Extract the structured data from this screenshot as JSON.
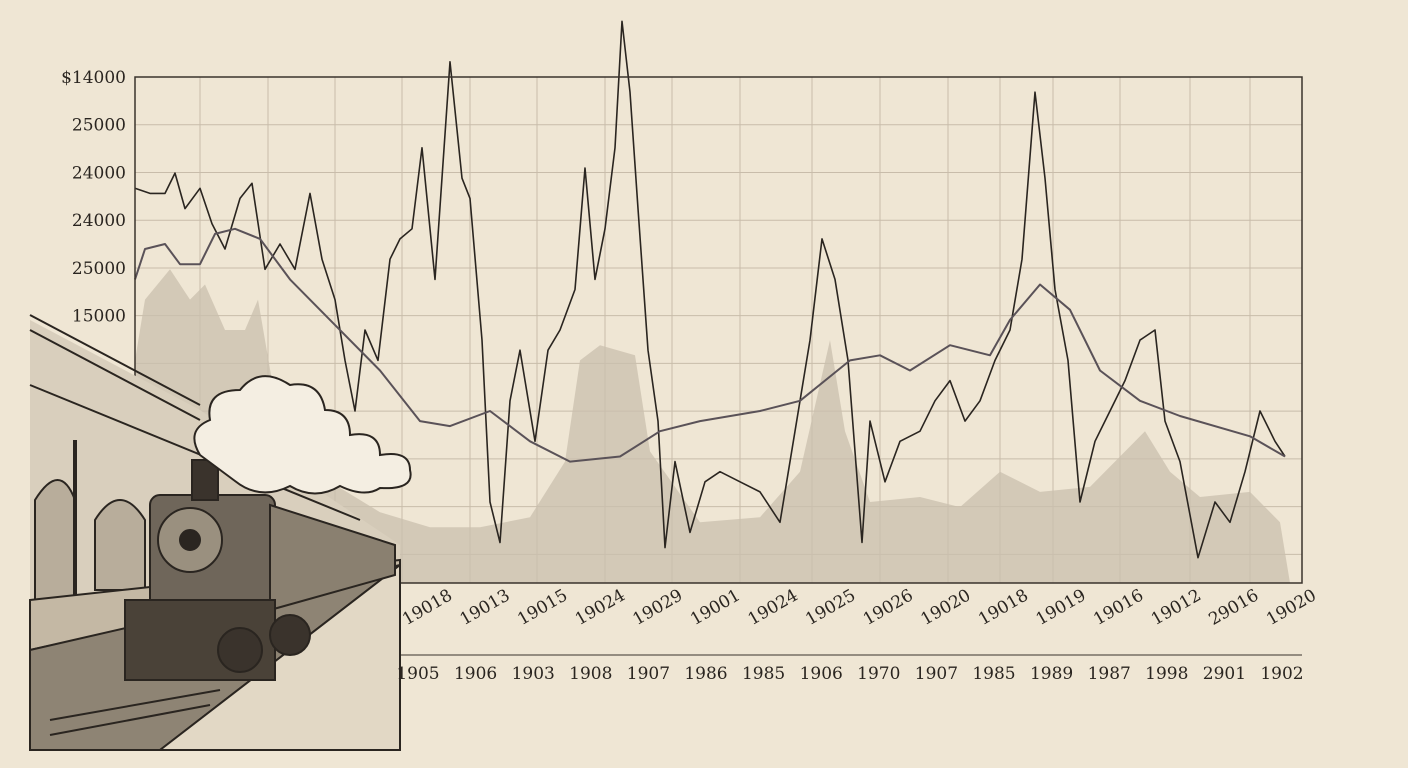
{
  "chart_data": {
    "type": "line",
    "y_labels": [
      "$14000",
      "25000",
      "24000",
      "24000",
      "25000",
      "15000"
    ],
    "x_labels_top": [
      "19018",
      "19013",
      "19015",
      "19024",
      "19029",
      "19001",
      "19024",
      "19025",
      "19026",
      "19020",
      "19018",
      "19019",
      "19016",
      "19012",
      "29016",
      "19020"
    ],
    "x_labels_bottom": [
      "1905",
      "1906",
      "1903",
      "1908",
      "1907",
      "1986",
      "1985",
      "1906",
      "1970",
      "1907",
      "1985",
      "1989",
      "1987",
      "1998",
      "2901",
      "1902"
    ],
    "xlim": [
      0,
      1167
    ],
    "ylim": [
      0,
      100
    ],
    "grid": true,
    "area": {
      "color": "#c9bfae",
      "x": [
        0,
        10,
        35,
        55,
        70,
        90,
        110,
        123,
        137,
        155,
        195,
        245,
        295,
        345,
        395,
        430,
        445,
        465,
        500,
        515,
        565,
        625,
        665,
        695,
        710,
        735,
        785,
        825,
        865,
        905,
        955,
        1010,
        1035,
        1065,
        1115,
        1145,
        1155
      ],
      "values": [
        44,
        56,
        62,
        56,
        59,
        50,
        50,
        56,
        40,
        24,
        20,
        14,
        11,
        11,
        13,
        24,
        44,
        47,
        45,
        26,
        12,
        13,
        22,
        48,
        30,
        16,
        17,
        15,
        22,
        18,
        19,
        30,
        22,
        17,
        18,
        12,
        0
      ]
    },
    "series": [
      {
        "color": "#2a2520",
        "x": [
          0,
          15,
          30,
          40,
          50,
          65,
          77,
          90,
          105,
          117,
          130,
          145,
          160,
          175,
          187,
          200,
          210,
          220,
          230,
          243,
          255,
          265,
          277,
          287,
          300,
          315,
          327,
          335,
          347,
          355,
          365,
          375,
          385,
          400,
          413,
          425,
          440,
          450,
          460,
          470,
          480,
          487,
          495,
          503,
          513,
          523,
          530,
          540,
          555,
          570,
          585,
          605,
          625,
          645,
          660,
          675,
          687,
          700,
          713,
          727,
          735,
          750,
          765,
          785,
          800,
          815,
          830,
          845,
          860,
          875,
          887,
          900,
          910,
          920,
          933,
          945,
          960,
          975,
          990,
          1005,
          1020,
          1030,
          1045,
          1063,
          1080,
          1095,
          1110,
          1125,
          1140,
          1150
        ],
        "values": [
          78,
          77,
          77,
          81,
          74,
          78,
          71,
          66,
          76,
          79,
          62,
          67,
          62,
          77,
          64,
          56,
          44,
          34,
          50,
          44,
          64,
          68,
          70,
          86,
          60,
          103,
          80,
          76,
          48,
          16,
          8,
          36,
          46,
          28,
          46,
          50,
          58,
          82,
          60,
          70,
          86,
          111,
          97,
          74,
          46,
          32,
          7,
          24,
          10,
          20,
          22,
          20,
          18,
          12,
          30,
          48,
          68,
          60,
          44,
          8,
          32,
          20,
          28,
          30,
          36,
          40,
          32,
          36,
          44,
          50,
          64,
          97,
          80,
          58,
          44,
          16,
          28,
          34,
          40,
          48,
          50,
          32,
          24,
          5,
          16,
          12,
          22,
          34,
          28,
          25
        ]
      },
      {
        "color": "#5a5258",
        "x": [
          0,
          10,
          30,
          45,
          65,
          80,
          100,
          125,
          155,
          195,
          245,
          285,
          315,
          355,
          395,
          435,
          485,
          525,
          565,
          625,
          665,
          715,
          745,
          775,
          815,
          855,
          875,
          905,
          935,
          965,
          1005,
          1045,
          1115,
          1150
        ],
        "values": [
          60,
          66,
          67,
          63,
          63,
          69,
          70,
          68,
          60,
          52,
          42,
          32,
          31,
          34,
          28,
          24,
          25,
          30,
          32,
          34,
          36,
          44,
          45,
          42,
          47,
          45,
          52,
          59,
          54,
          42,
          36,
          33,
          29,
          25
        ]
      }
    ]
  }
}
